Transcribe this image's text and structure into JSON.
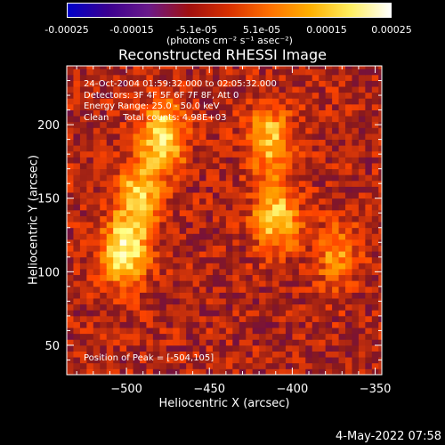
{
  "header": {
    "colorbar_unit_label": "(photons cm⁻² s⁻¹ asec⁻²)",
    "colorbar_ticks": [
      "-0.00025",
      "-0.00015",
      "-5.1e-05",
      "5.1e-05",
      "0.00015",
      "0.00025"
    ]
  },
  "footer": {
    "timestamp": "4-May-2022 07:58"
  },
  "chart_data": {
    "type": "heatmap",
    "title": "Reconstructed RHESSI Image",
    "xlabel": "Heliocentric X (arcsec)",
    "ylabel": "Heliocentric Y (arcsec)",
    "xlim": [
      -536,
      -346
    ],
    "ylim": [
      30,
      240
    ],
    "xticks": [
      -500,
      -450,
      -400,
      -350
    ],
    "xtick_labels": [
      "−500",
      "−450",
      "−400",
      "−350"
    ],
    "yticks": [
      50,
      100,
      150,
      200
    ],
    "ytick_labels": [
      "50",
      "100",
      "150",
      "200"
    ],
    "colorbar_range": [
      -0.00025,
      0.00025
    ],
    "colormap": [
      "#0000c8",
      "#4b0082",
      "#8b1a1a",
      "#ff4500",
      "#ffa500",
      "#ffff80",
      "#ffffff"
    ],
    "annotations": [
      "24-Oct-2004 01:59:32.000 to 02:05:32.000",
      "Detectors: 3F 4F 5F 6F 7F 8F, Att 0",
      "Energy Range: 25.0 - 50.0 keV",
      "Clean     Total counts: 4.98E+03",
      "Position of Peak = [-504,105]"
    ],
    "peak": [
      -504,
      105
    ],
    "sources": [
      {
        "x": -503,
        "y": 112,
        "peak": 0.00024
      },
      {
        "x": -495,
        "y": 150,
        "peak": 0.00018
      },
      {
        "x": -480,
        "y": 190,
        "peak": 0.00022
      },
      {
        "x": -412,
        "y": 135,
        "peak": 0.00019
      },
      {
        "x": -415,
        "y": 188,
        "peak": 0.00018
      },
      {
        "x": -375,
        "y": 110,
        "peak": 0.00012
      }
    ]
  }
}
